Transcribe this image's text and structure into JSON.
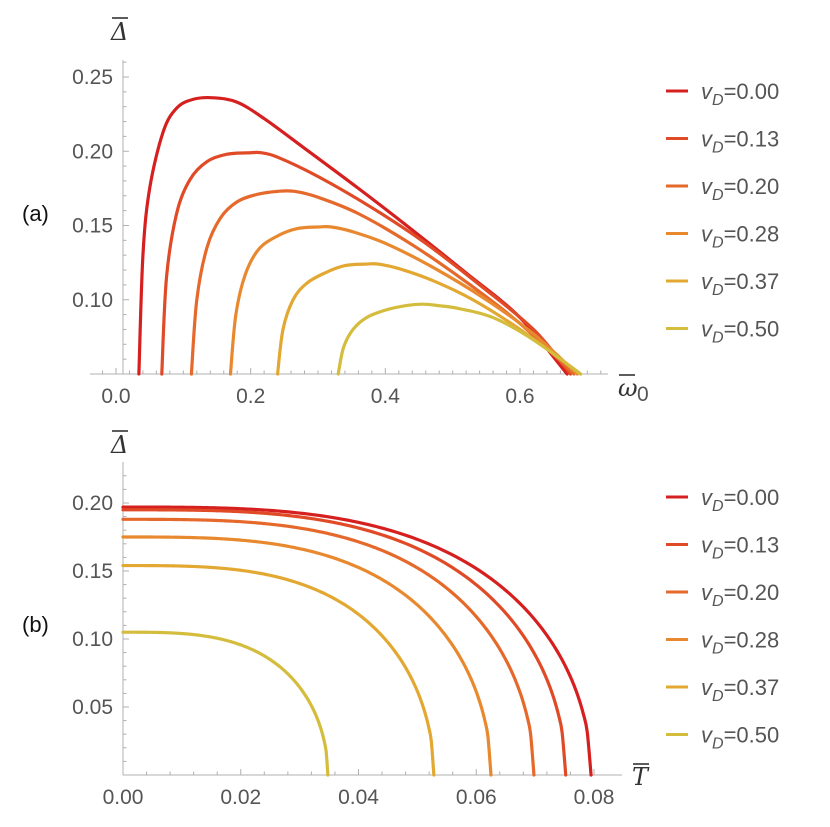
{
  "chart_data": [
    {
      "type": "line",
      "panel_label": "(a)",
      "xlabel": "ω",
      "xlabel_subscript": "0",
      "ylabel": "Δ",
      "xlim": [
        -0.04,
        0.77
      ],
      "ylim": [
        0.05,
        0.265
      ],
      "xticks": [
        "0.0",
        "0.2",
        "0.4",
        "0.6"
      ],
      "yticks": [
        "0.10",
        "0.15",
        "0.20",
        "0.25"
      ],
      "legend_position": "right",
      "series": [
        {
          "name": "v_D=0.00",
          "label_main": "v",
          "label_sub": "D",
          "label_value": "=0.00",
          "color": "#d62020",
          "x": [
            0.034,
            0.04,
            0.05,
            0.07,
            0.09,
            0.115,
            0.145,
            0.18,
            0.22,
            0.28,
            0.36,
            0.44,
            0.52,
            0.6,
            0.67
          ],
          "y": [
            0.05,
            0.13,
            0.175,
            0.213,
            0.229,
            0.235,
            0.236,
            0.233,
            0.222,
            0.202,
            0.175,
            0.147,
            0.118,
            0.088,
            0.05
          ]
        },
        {
          "name": "v_D=0.13",
          "label_main": "v",
          "label_sub": "D",
          "label_value": "=0.13",
          "color": "#e04a26",
          "x": [
            0.068,
            0.075,
            0.09,
            0.11,
            0.135,
            0.165,
            0.2,
            0.215,
            0.24,
            0.3,
            0.38,
            0.46,
            0.54,
            0.62,
            0.675
          ],
          "y": [
            0.05,
            0.115,
            0.158,
            0.181,
            0.193,
            0.198,
            0.199,
            0.199,
            0.196,
            0.183,
            0.162,
            0.138,
            0.11,
            0.08,
            0.05
          ]
        },
        {
          "name": "v_D=0.20",
          "label_main": "v",
          "label_sub": "D",
          "label_value": "=0.20",
          "color": "#e6692c",
          "x": [
            0.112,
            0.12,
            0.135,
            0.155,
            0.18,
            0.21,
            0.24,
            0.265,
            0.3,
            0.36,
            0.44,
            0.52,
            0.6,
            0.68
          ],
          "y": [
            0.05,
            0.1,
            0.135,
            0.155,
            0.166,
            0.171,
            0.173,
            0.173,
            0.169,
            0.158,
            0.137,
            0.112,
            0.084,
            0.05
          ]
        },
        {
          "name": "v_D=0.28",
          "label_main": "v",
          "label_sub": "D",
          "label_value": "=0.28",
          "color": "#e8892f",
          "x": [
            0.17,
            0.178,
            0.192,
            0.212,
            0.24,
            0.27,
            0.3,
            0.32,
            0.35,
            0.4,
            0.47,
            0.55,
            0.62,
            0.685
          ],
          "y": [
            0.05,
            0.09,
            0.117,
            0.134,
            0.143,
            0.148,
            0.149,
            0.149,
            0.146,
            0.138,
            0.122,
            0.1,
            0.077,
            0.05
          ]
        },
        {
          "name": "v_D=0.37",
          "label_main": "v",
          "label_sub": "D",
          "label_value": "=0.37",
          "color": "#e2a832",
          "x": [
            0.24,
            0.248,
            0.263,
            0.283,
            0.31,
            0.34,
            0.37,
            0.39,
            0.42,
            0.47,
            0.53,
            0.6,
            0.69
          ],
          "y": [
            0.05,
            0.08,
            0.1,
            0.111,
            0.118,
            0.123,
            0.124,
            0.124,
            0.121,
            0.113,
            0.1,
            0.08,
            0.05
          ]
        },
        {
          "name": "v_D=0.50",
          "label_main": "v",
          "label_sub": "D",
          "label_value": "=0.50",
          "color": "#d4bc3c",
          "x": [
            0.33,
            0.338,
            0.352,
            0.372,
            0.4,
            0.43,
            0.455,
            0.48,
            0.51,
            0.56,
            0.62,
            0.69
          ],
          "y": [
            0.05,
            0.068,
            0.08,
            0.088,
            0.093,
            0.096,
            0.097,
            0.096,
            0.094,
            0.088,
            0.073,
            0.05
          ]
        }
      ]
    },
    {
      "type": "line",
      "panel_label": "(b)",
      "xlabel": "T",
      "ylabel": "Δ",
      "xlim": [
        0,
        0.0835
      ],
      "ylim": [
        0,
        0.222
      ],
      "xticks": [
        "0.00",
        "0.02",
        "0.04",
        "0.06",
        "0.08"
      ],
      "yticks": [
        "0.05",
        "0.10",
        "0.15",
        "0.20"
      ],
      "legend_position": "right",
      "series": [
        {
          "name": "v_D=0.00",
          "label_main": "v",
          "label_sub": "D",
          "label_value": "=0.00",
          "color": "#d62020",
          "delta0": 0.197,
          "tc": 0.0795
        },
        {
          "name": "v_D=0.13",
          "label_main": "v",
          "label_sub": "D",
          "label_value": "=0.13",
          "color": "#e04a26",
          "delta0": 0.195,
          "tc": 0.0752
        },
        {
          "name": "v_D=0.20",
          "label_main": "v",
          "label_sub": "D",
          "label_value": "=0.20",
          "color": "#e6692c",
          "delta0": 0.188,
          "tc": 0.0698
        },
        {
          "name": "v_D=0.28",
          "label_main": "v",
          "label_sub": "D",
          "label_value": "=0.28",
          "color": "#e8892f",
          "delta0": 0.175,
          "tc": 0.0625
        },
        {
          "name": "v_D=0.37",
          "label_main": "v",
          "label_sub": "D",
          "label_value": "=0.37",
          "color": "#e2a832",
          "delta0": 0.154,
          "tc": 0.0528
        },
        {
          "name": "v_D=0.50",
          "label_main": "v",
          "label_sub": "D",
          "label_value": "=0.50",
          "color": "#d4bc3c",
          "delta0": 0.105,
          "tc": 0.0348
        }
      ]
    }
  ]
}
